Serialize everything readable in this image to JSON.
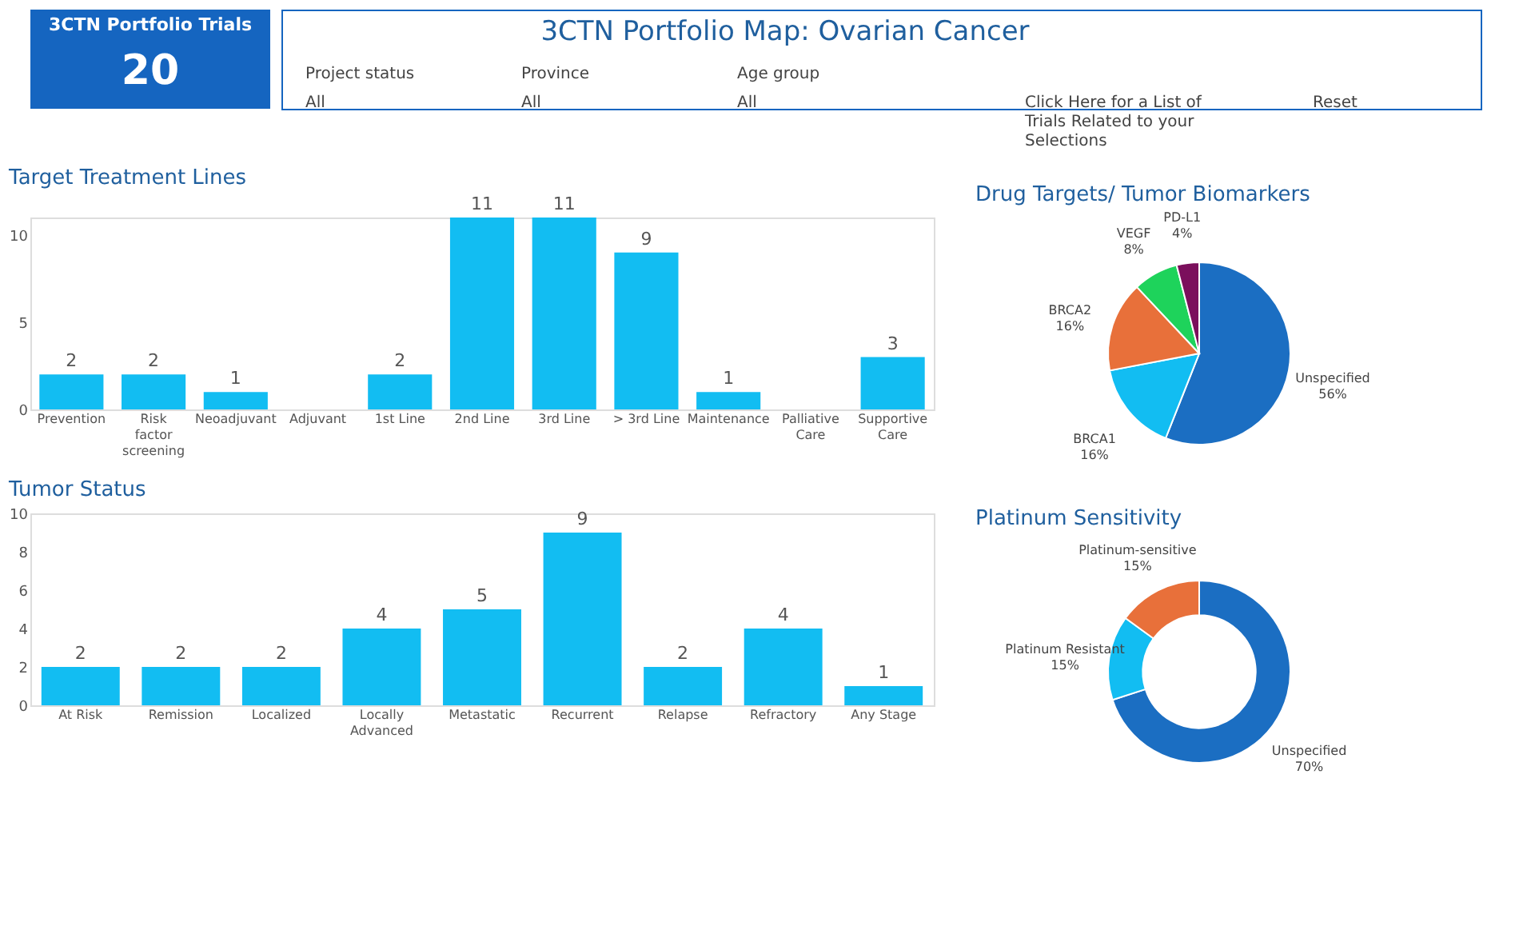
{
  "chart_data": [
    {
      "type": "other",
      "title": "3CTN Portfolio Trials",
      "annotations": [
        "20"
      ]
    },
    {
      "type": "other",
      "title": "3CTN Portfolio Map: Ovarian Cancer",
      "annotations": [
        "Project status",
        "All",
        "Province",
        "All",
        "Age group",
        "All",
        "Click Here for a List of Trials Related to your Selections",
        "Reset"
      ]
    },
    {
      "type": "bar",
      "title": "Target Treatment Lines",
      "categories": [
        "Prevention",
        "Risk factor screening",
        "Neoadjuvant",
        "Adjuvant",
        "1st Line",
        "2nd Line",
        "3rd Line",
        "> 3rd Line",
        "Maintenance",
        "Palliative Care",
        "Supportive Care"
      ],
      "values": [
        2,
        2,
        1,
        null,
        2,
        11,
        11,
        9,
        1,
        null,
        3
      ],
      "color": "#12bdf2",
      "ylim": [
        0,
        11
      ],
      "yticks": [
        0,
        5,
        10
      ],
      "data_labels": true
    },
    {
      "type": "pie",
      "title": "Drug Targets/ Tumor Biomarkers",
      "categories": [
        "Unspecified",
        "BRCA1",
        "BRCA2",
        "VEGF",
        "PD-L1"
      ],
      "values": [
        56,
        16,
        16,
        8,
        4
      ],
      "colors": [
        "#1b6ec2",
        "#12bdf2",
        "#e8703a",
        "#1ed35b",
        "#7b0f5c"
      ],
      "value_labels": [
        "56%",
        "16%",
        "16%",
        "8%",
        "4%"
      ]
    },
    {
      "type": "bar",
      "title": "Tumor Status",
      "categories": [
        "At Risk",
        "Remission",
        "Localized",
        "Locally Advanced",
        "Metastatic",
        "Recurrent",
        "Relapse",
        "Refractory",
        "Any Stage"
      ],
      "values": [
        2,
        2,
        2,
        4,
        5,
        9,
        2,
        4,
        1
      ],
      "color": "#12bdf2",
      "ylim": [
        0,
        10
      ],
      "yticks": [
        0,
        2,
        4,
        6,
        8,
        10
      ],
      "data_labels": true
    },
    {
      "type": "donut",
      "title": "Platinum Sensitivity",
      "categories": [
        "Unspecified",
        "Platinum Resistant",
        "Platinum-sensitive"
      ],
      "values": [
        70,
        15,
        15
      ],
      "colors": [
        "#1b6ec2",
        "#12bdf2",
        "#e8703a"
      ],
      "value_labels": [
        "70%",
        "15%",
        "15%"
      ]
    }
  ]
}
